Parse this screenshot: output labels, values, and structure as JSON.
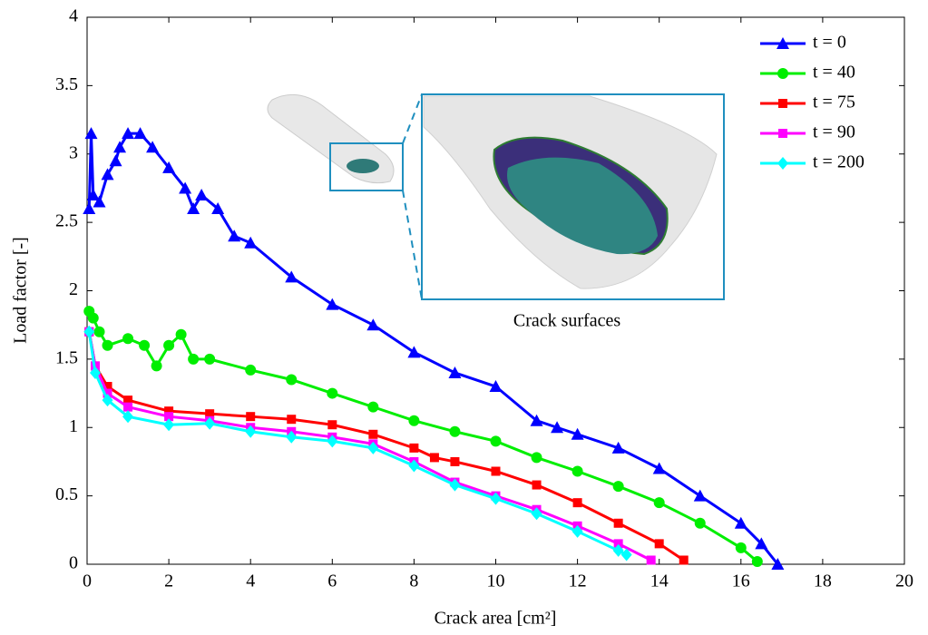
{
  "chart_data": {
    "type": "line",
    "xlabel": "Crack area [cm²]",
    "ylabel": "Load factor [-]",
    "annotation": "Crack surfaces",
    "xlim": [
      0,
      20
    ],
    "xticks": [
      0,
      2,
      4,
      6,
      8,
      10,
      12,
      14,
      16,
      18,
      20
    ],
    "ylim": [
      0,
      4
    ],
    "yticks": [
      0,
      0.5,
      1,
      1.5,
      2,
      2.5,
      3,
      3.5,
      4
    ],
    "legend": "upper right",
    "series": [
      {
        "name": "t = 0",
        "color": "#0000ff",
        "marker": "triangle",
        "x": [
          0.05,
          0.1,
          0.15,
          0.3,
          0.5,
          0.7,
          0.8,
          1.0,
          1.3,
          1.6,
          2.0,
          2.4,
          2.6,
          2.8,
          3.2,
          3.6,
          4,
          5,
          6,
          7,
          8,
          9,
          10,
          11,
          11.5,
          12,
          13,
          14,
          15,
          16,
          16.5,
          16.9
        ],
        "values": [
          2.6,
          3.15,
          2.7,
          2.65,
          2.85,
          2.95,
          3.05,
          3.15,
          3.15,
          3.05,
          2.9,
          2.75,
          2.6,
          2.7,
          2.6,
          2.4,
          2.35,
          2.1,
          1.9,
          1.75,
          1.55,
          1.4,
          1.3,
          1.05,
          1.0,
          0.95,
          0.85,
          0.7,
          0.5,
          0.3,
          0.15,
          0
        ]
      },
      {
        "name": "t = 40",
        "color": "#00ee00",
        "marker": "circle",
        "x": [
          0.05,
          0.15,
          0.3,
          0.5,
          1,
          1.4,
          1.7,
          2,
          2.3,
          2.6,
          3,
          4,
          5,
          6,
          7,
          8,
          9,
          10,
          11,
          12,
          13,
          14,
          15,
          16,
          16.4
        ],
        "values": [
          1.85,
          1.8,
          1.7,
          1.6,
          1.65,
          1.6,
          1.45,
          1.6,
          1.68,
          1.5,
          1.5,
          1.42,
          1.35,
          1.25,
          1.15,
          1.05,
          0.97,
          0.9,
          0.78,
          0.68,
          0.57,
          0.45,
          0.3,
          0.12,
          0.02
        ]
      },
      {
        "name": "t = 75",
        "color": "#ff0000",
        "marker": "square",
        "x": [
          0.05,
          0.2,
          0.5,
          1,
          2,
          3,
          4,
          5,
          6,
          7,
          8,
          8.5,
          9,
          10,
          11,
          12,
          13,
          14,
          14.6
        ],
        "values": [
          1.7,
          1.45,
          1.3,
          1.2,
          1.12,
          1.1,
          1.08,
          1.06,
          1.02,
          0.95,
          0.85,
          0.78,
          0.75,
          0.68,
          0.58,
          0.45,
          0.3,
          0.15,
          0.03
        ]
      },
      {
        "name": "t = 90",
        "color": "#ff00ff",
        "marker": "square",
        "x": [
          0.05,
          0.2,
          0.5,
          1,
          2,
          3,
          4,
          5,
          6,
          7,
          8,
          9,
          10,
          11,
          12,
          13,
          13.8
        ],
        "values": [
          1.7,
          1.45,
          1.25,
          1.15,
          1.08,
          1.05,
          1.0,
          0.97,
          0.93,
          0.88,
          0.75,
          0.6,
          0.5,
          0.4,
          0.28,
          0.15,
          0.03
        ]
      },
      {
        "name": "t = 200",
        "color": "#00ffff",
        "marker": "diamond",
        "x": [
          0.05,
          0.2,
          0.5,
          1,
          2,
          3,
          4,
          5,
          6,
          7,
          8,
          9,
          10,
          11,
          12,
          13,
          13.2
        ],
        "values": [
          1.7,
          1.4,
          1.2,
          1.08,
          1.02,
          1.03,
          0.97,
          0.93,
          0.9,
          0.85,
          0.72,
          0.58,
          0.48,
          0.37,
          0.24,
          0.1,
          0.07
        ]
      }
    ]
  }
}
